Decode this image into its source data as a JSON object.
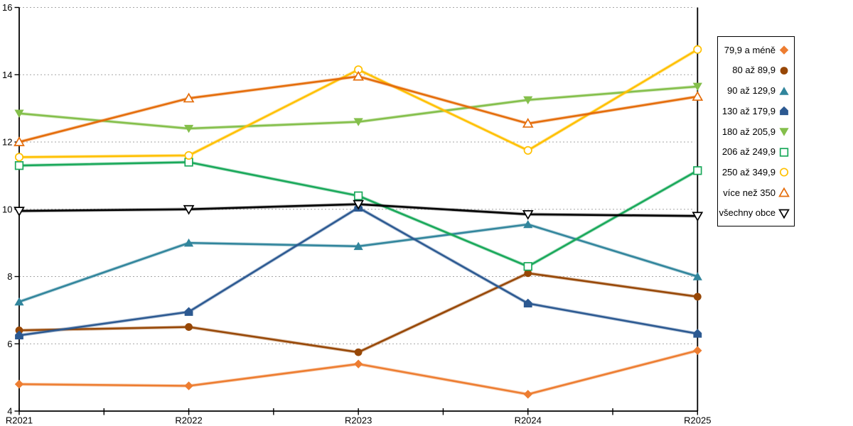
{
  "chart_data": {
    "type": "line",
    "categories": [
      "R2021",
      "R2022",
      "R2023",
      "R2024",
      "R2025"
    ],
    "ylim": [
      4,
      16
    ],
    "y_ticks": [
      4,
      6,
      8,
      10,
      12,
      14,
      16
    ],
    "grid": "horizontal-dashed",
    "legend_position": "right-outside",
    "title": "",
    "xlabel": "",
    "ylabel": "",
    "series": [
      {
        "name": "79,9 a méně",
        "marker": "diamond-filled",
        "color": "#ED7D31",
        "values": [
          4.8,
          4.75,
          5.4,
          4.5,
          5.8
        ]
      },
      {
        "name": "80 až 89,9",
        "marker": "circle-filled",
        "color": "#974706",
        "values": [
          6.4,
          6.5,
          5.75,
          8.1,
          7.4
        ]
      },
      {
        "name": "90 až 129,9",
        "marker": "triangle-up-filled",
        "color": "#31859C",
        "values": [
          7.25,
          9.0,
          8.9,
          9.55,
          8.0
        ]
      },
      {
        "name": "130 až 179,9",
        "marker": "pentagon-filled",
        "color": "#2C5991",
        "values": [
          6.25,
          6.95,
          10.05,
          7.2,
          6.3
        ]
      },
      {
        "name": "180 až 205,9",
        "marker": "triangle-down-filled",
        "color": "#84BF4B",
        "values": [
          12.85,
          12.4,
          12.6,
          13.25,
          13.65
        ]
      },
      {
        "name": "206 až 249,9",
        "marker": "square-open",
        "color": "#19A85A",
        "values": [
          11.3,
          11.4,
          10.4,
          8.3,
          11.15
        ]
      },
      {
        "name": "250 až 349,9",
        "marker": "circle-open",
        "color": "#FFC000",
        "values": [
          11.55,
          11.6,
          14.15,
          11.75,
          14.75
        ]
      },
      {
        "name": "více než 350",
        "marker": "triangle-up-open",
        "color": "#E46C0A",
        "values": [
          12.0,
          13.3,
          13.95,
          12.55,
          13.35
        ]
      },
      {
        "name": "všechny obce",
        "marker": "triangle-down-open",
        "color": "#000000",
        "values": [
          9.95,
          10.0,
          10.15,
          9.85,
          9.8
        ]
      }
    ],
    "colors": {
      "axis": "#000000",
      "grid": "#A6A6A6",
      "background": "#FFFFFF",
      "legend_border": "#000000",
      "label_text": "#000000"
    }
  }
}
